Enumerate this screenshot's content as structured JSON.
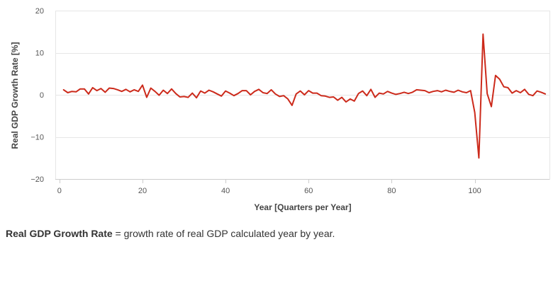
{
  "chart_data": {
    "type": "line",
    "xlabel": "Year [Quarters per Year]",
    "ylabel": "Real GDP Growth Rate [%]",
    "xlim": [
      -1,
      118
    ],
    "ylim": [
      -20,
      20
    ],
    "x_ticks": [
      0,
      20,
      40,
      60,
      80,
      100
    ],
    "y_ticks": [
      -20,
      -10,
      0,
      10,
      20
    ],
    "x_tick_labels": [
      "0",
      "20",
      "40",
      "60",
      "80",
      "100"
    ],
    "y_tick_labels": [
      "−20",
      "−10",
      "0",
      "10",
      "20"
    ],
    "grid": "horizontal",
    "legend": "none",
    "series": [
      {
        "color": "#cc2a1b",
        "x": [
          1,
          2,
          3,
          4,
          5,
          6,
          7,
          8,
          9,
          10,
          11,
          12,
          13,
          14,
          15,
          16,
          17,
          18,
          19,
          20,
          21,
          22,
          23,
          24,
          25,
          26,
          27,
          28,
          29,
          30,
          31,
          32,
          33,
          34,
          35,
          36,
          37,
          38,
          39,
          40,
          41,
          42,
          43,
          44,
          45,
          46,
          47,
          48,
          49,
          50,
          51,
          52,
          53,
          54,
          55,
          56,
          57,
          58,
          59,
          60,
          61,
          62,
          63,
          64,
          65,
          66,
          67,
          68,
          69,
          70,
          71,
          72,
          73,
          74,
          75,
          76,
          77,
          78,
          79,
          80,
          81,
          82,
          83,
          84,
          85,
          86,
          87,
          88,
          89,
          90,
          91,
          92,
          93,
          94,
          95,
          96,
          97,
          98,
          99,
          100,
          101,
          102,
          103,
          104,
          105,
          106,
          107,
          108,
          109,
          110,
          111,
          112,
          113,
          114,
          115,
          116,
          117
        ],
        "values": [
          1.2,
          0.5,
          0.8,
          0.7,
          1.4,
          1.4,
          0.2,
          1.7,
          1.0,
          1.5,
          0.6,
          1.6,
          1.5,
          1.2,
          0.8,
          1.3,
          0.7,
          1.2,
          0.8,
          2.3,
          -0.6,
          1.6,
          0.8,
          -0.1,
          1.1,
          0.3,
          1.4,
          0.3,
          -0.5,
          -0.4,
          -0.6,
          0.4,
          -0.7,
          0.9,
          0.4,
          1.1,
          0.7,
          0.2,
          -0.3,
          0.9,
          0.4,
          -0.2,
          0.3,
          1.0,
          1.0,
          0.0,
          0.8,
          1.3,
          0.5,
          0.3,
          1.2,
          0.2,
          -0.4,
          -0.2,
          -1.0,
          -2.5,
          0.2,
          0.9,
          0.0,
          1.0,
          0.4,
          0.4,
          -0.2,
          -0.3,
          -0.6,
          -0.5,
          -1.3,
          -0.6,
          -1.7,
          -1.0,
          -1.5,
          0.3,
          0.9,
          -0.2,
          1.3,
          -0.6,
          0.4,
          0.2,
          0.8,
          0.4,
          0.1,
          0.3,
          0.6,
          0.3,
          0.6,
          1.2,
          1.1,
          1.0,
          0.5,
          0.8,
          1.0,
          0.7,
          1.1,
          0.8,
          0.6,
          1.1,
          0.7,
          0.5,
          1.0,
          -4.2,
          -15.0,
          14.4,
          0.3,
          -2.8,
          4.6,
          3.7,
          1.9,
          1.7,
          0.4,
          1.0,
          0.5,
          1.3,
          0.1,
          -0.2,
          0.9,
          0.6,
          0.2
        ]
      }
    ],
    "caption_term": "Real GDP Growth Rate",
    "caption_rest": " = growth rate of real GDP calculated year by year."
  }
}
